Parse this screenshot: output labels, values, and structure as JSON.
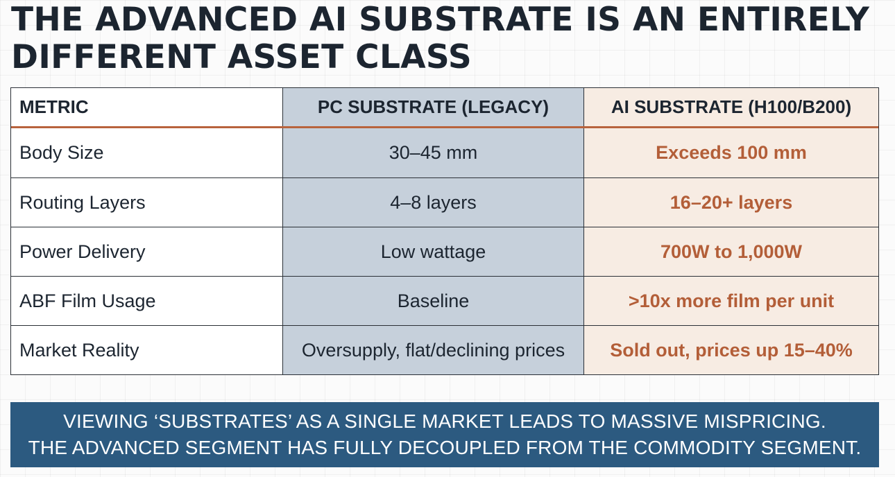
{
  "title": "THE ADVANCED AI SUBSTRATE IS AN ENTIRELY DIFFERENT ASSET CLASS",
  "table": {
    "headers": [
      "METRIC",
      "PC SUBSTRATE (LEGACY)",
      "AI SUBSTRATE (H100/B200)"
    ],
    "rows": [
      {
        "metric": "Body Size",
        "pc": "30–45 mm",
        "ai": "Exceeds 100 mm"
      },
      {
        "metric": "Routing Layers",
        "pc": "4–8 layers",
        "ai": "16–20+ layers"
      },
      {
        "metric": "Power Delivery",
        "pc": "Low wattage",
        "ai": "700W to 1,000W"
      },
      {
        "metric": "ABF Film Usage",
        "pc": "Baseline",
        "ai": ">10x more film per unit"
      },
      {
        "metric": "Market Reality",
        "pc": "Oversupply, flat/declining prices",
        "ai": "Sold out, prices up 15–40%"
      }
    ]
  },
  "banner": {
    "line1": "VIEWING ‘SUBSTRATES’ AS A SINGLE MARKET LEADS TO MASSIVE MISPRICING.",
    "line2": "THE ADVANCED SEGMENT HAS FULLY DECOUPLED FROM THE COMMODITY SEGMENT."
  },
  "colors": {
    "title_text": "#1c2530",
    "legacy_column": "#c6d0db",
    "ai_column": "#f7ece3",
    "ai_accent": "#b35e38",
    "banner_background": "#2c5a80"
  }
}
